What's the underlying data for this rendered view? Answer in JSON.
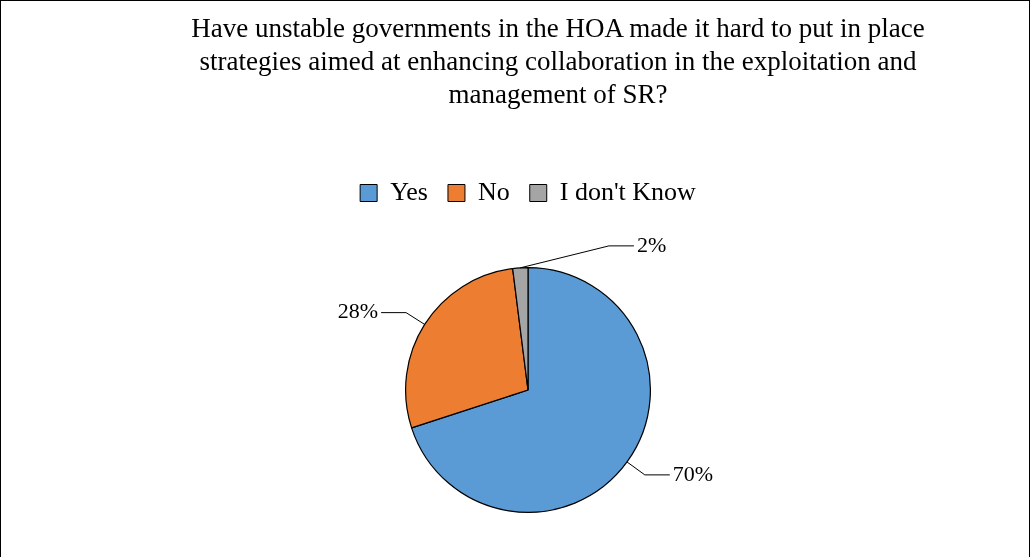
{
  "chart_data": {
    "type": "pie",
    "title": "Have unstable governments in the HOA made it hard to put in place strategies aimed at enhancing collaboration in the exploitation and management of SR?",
    "categories": [
      "Yes",
      "No",
      "I don't Know"
    ],
    "values": [
      70,
      28,
      2
    ],
    "value_labels": [
      "70%",
      "28%",
      "2%"
    ],
    "colors": [
      "#5b9bd5",
      "#ed7d31",
      "#a5a5a5"
    ],
    "legend": "top"
  }
}
